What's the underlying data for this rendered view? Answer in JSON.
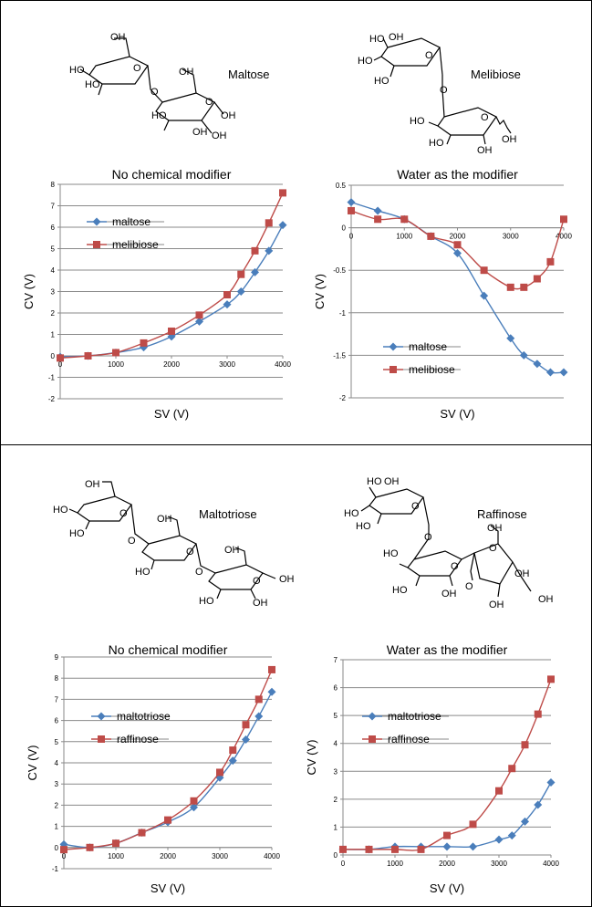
{
  "panels": [
    {
      "molecules": [
        {
          "name": "Maltose"
        },
        {
          "name": "Melibiose"
        }
      ]
    },
    {
      "molecules": [
        {
          "name": "Maltotriose"
        },
        {
          "name": "Raffinose"
        }
      ]
    }
  ],
  "chart_data": [
    {
      "type": "line",
      "title": "No chemical modifier",
      "xlabel": "SV (V)",
      "ylabel": "CV (V)",
      "xlim": [
        0,
        4000
      ],
      "ylim": [
        -2,
        8
      ],
      "xticks": [
        0,
        1000,
        2000,
        3000,
        4000
      ],
      "yticks": [
        -2,
        -1,
        0,
        1,
        2,
        3,
        4,
        5,
        6,
        7,
        8
      ],
      "grid": "horizontal",
      "legend": "upper-left",
      "series": [
        {
          "name": "maltose",
          "color": "#4a7ebb",
          "marker": "diamond",
          "x": [
            0,
            500,
            1000,
            1500,
            2000,
            2500,
            3000,
            3250,
            3500,
            3750,
            4000
          ],
          "y": [
            -0.05,
            0.0,
            0.15,
            0.4,
            0.9,
            1.6,
            2.4,
            3.0,
            3.9,
            4.9,
            6.1
          ]
        },
        {
          "name": "melibiose",
          "color": "#be4b48",
          "marker": "square",
          "x": [
            0,
            500,
            1000,
            1500,
            2000,
            2500,
            3000,
            3250,
            3500,
            3750,
            4000
          ],
          "y": [
            -0.1,
            0.0,
            0.15,
            0.6,
            1.15,
            1.9,
            2.85,
            3.8,
            4.9,
            6.2,
            7.6
          ]
        }
      ]
    },
    {
      "type": "line",
      "title": "Water as the modifier",
      "xlabel": "SV (V)",
      "ylabel": "CV (V)",
      "xlim": [
        0,
        4000
      ],
      "ylim": [
        -2,
        0.5
      ],
      "xticks": [
        0,
        1000,
        2000,
        3000,
        4000
      ],
      "yticks": [
        -2,
        -1.5,
        -1,
        -0.5,
        0,
        0.5
      ],
      "grid": "horizontal",
      "legend": "lower-left",
      "series": [
        {
          "name": "maltose",
          "color": "#4a7ebb",
          "marker": "diamond",
          "x": [
            0,
            500,
            1000,
            1500,
            2000,
            2500,
            3000,
            3250,
            3500,
            3750,
            4000
          ],
          "y": [
            0.3,
            0.2,
            0.1,
            -0.1,
            -0.3,
            -0.8,
            -1.3,
            -1.5,
            -1.6,
            -1.7,
            -1.7
          ]
        },
        {
          "name": "melibiose",
          "color": "#be4b48",
          "marker": "square",
          "x": [
            0,
            500,
            1000,
            1500,
            2000,
            2500,
            3000,
            3250,
            3500,
            3750,
            4000
          ],
          "y": [
            0.2,
            0.1,
            0.1,
            -0.1,
            -0.2,
            -0.5,
            -0.7,
            -0.7,
            -0.6,
            -0.4,
            0.1
          ]
        }
      ]
    },
    {
      "type": "line",
      "title": "No chemical modifier",
      "xlabel": "SV (V)",
      "ylabel": "CV (V)",
      "xlim": [
        0,
        4000
      ],
      "ylim": [
        -1,
        9
      ],
      "xticks": [
        0,
        1000,
        2000,
        3000,
        4000
      ],
      "yticks": [
        -1,
        0,
        1,
        2,
        3,
        4,
        5,
        6,
        7,
        8,
        9
      ],
      "grid": "horizontal",
      "legend": "upper-left",
      "series": [
        {
          "name": "maltotriose",
          "color": "#4a7ebb",
          "marker": "diamond",
          "x": [
            0,
            500,
            1000,
            1500,
            2000,
            2500,
            3000,
            3250,
            3500,
            3750,
            4000
          ],
          "y": [
            0.15,
            0.0,
            0.2,
            0.7,
            1.2,
            1.9,
            3.3,
            4.1,
            5.1,
            6.2,
            7.35
          ]
        },
        {
          "name": "raffinose",
          "color": "#be4b48",
          "marker": "square",
          "x": [
            0,
            500,
            1000,
            1500,
            2000,
            2500,
            3000,
            3250,
            3500,
            3750,
            4000
          ],
          "y": [
            -0.1,
            0.0,
            0.2,
            0.7,
            1.3,
            2.2,
            3.55,
            4.6,
            5.8,
            7.0,
            8.4
          ]
        }
      ]
    },
    {
      "type": "line",
      "title": "Water as the modifier",
      "xlabel": "SV (V)",
      "ylabel": "CV (V)",
      "xlim": [
        0,
        4000
      ],
      "ylim": [
        0,
        7
      ],
      "xticks": [
        0,
        1000,
        2000,
        3000,
        4000
      ],
      "yticks": [
        0,
        1,
        2,
        3,
        4,
        5,
        6,
        7
      ],
      "grid": "horizontal",
      "legend": "upper-left",
      "series": [
        {
          "name": "maltotriose",
          "color": "#4a7ebb",
          "marker": "diamond",
          "x": [
            0,
            500,
            1000,
            1500,
            2000,
            2500,
            3000,
            3250,
            3500,
            3750,
            4000
          ],
          "y": [
            0.2,
            0.2,
            0.3,
            0.3,
            0.3,
            0.3,
            0.55,
            0.7,
            1.2,
            1.8,
            2.6
          ]
        },
        {
          "name": "raffinose",
          "color": "#be4b48",
          "marker": "square",
          "x": [
            0,
            500,
            1000,
            1500,
            2000,
            2500,
            3000,
            3250,
            3500,
            3750,
            4000
          ],
          "y": [
            0.2,
            0.2,
            0.2,
            0.2,
            0.7,
            1.1,
            2.3,
            3.1,
            3.95,
            5.05,
            6.3
          ]
        }
      ]
    }
  ]
}
